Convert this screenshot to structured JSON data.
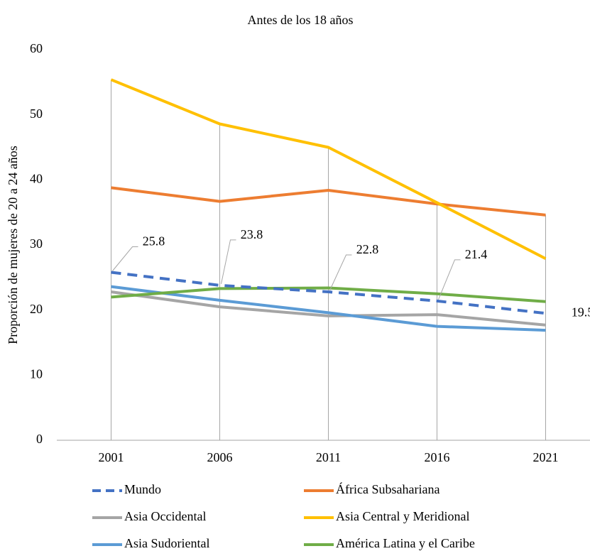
{
  "chart_data": {
    "type": "line",
    "title": "Antes de los 18 años",
    "y_label": "Proporción de mujeres de 20 a 24 años",
    "categories": [
      "2001",
      "2006",
      "2011",
      "2016",
      "2021"
    ],
    "ylim": [
      0,
      60
    ],
    "yticks": [
      0,
      10,
      20,
      30,
      40,
      50,
      60
    ],
    "series": [
      {
        "name": "Mundo",
        "color": "#4472c4",
        "dashed": true,
        "data_labels": true,
        "values": [
          25.8,
          23.8,
          22.8,
          21.4,
          19.5
        ]
      },
      {
        "name": "África Subsahariana",
        "color": "#ed7d31",
        "values": [
          38.8,
          36.7,
          38.4,
          36.3,
          34.6
        ]
      },
      {
        "name": "Asia Occidental",
        "color": "#a5a5a5",
        "values": [
          22.8,
          20.5,
          19.1,
          19.3,
          17.7
        ]
      },
      {
        "name": "Asia Central y Meridional",
        "color": "#ffc000",
        "values": [
          55.4,
          48.6,
          45.0,
          36.5,
          27.9
        ]
      },
      {
        "name": "Asia Sudoriental",
        "color": "#5b9bd5",
        "values": [
          23.6,
          21.5,
          19.6,
          17.5,
          16.9
        ]
      },
      {
        "name": "América Latina y el Caribe",
        "color": "#70ad47",
        "values": [
          22.0,
          23.3,
          23.4,
          22.5,
          21.3
        ]
      }
    ]
  }
}
